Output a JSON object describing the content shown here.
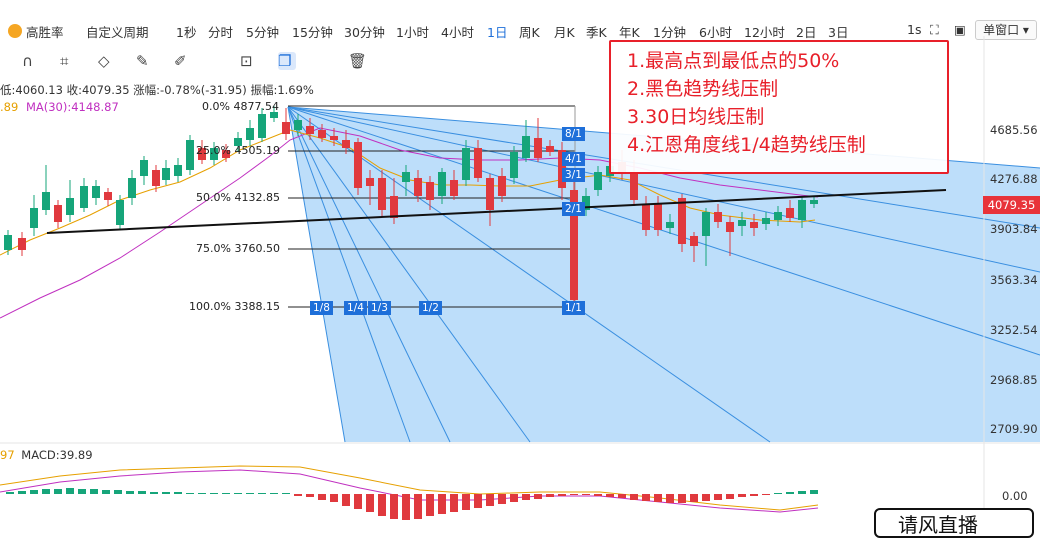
{
  "toolbar": {
    "brand": "高胜率",
    "periods": [
      "自定义周期",
      "1秒",
      "分时",
      "5分钟",
      "15分钟",
      "30分钟",
      "1小时",
      "4小时",
      "1日",
      "周K",
      "月K",
      "季K",
      "年K",
      "1分钟",
      "6小时",
      "12小时",
      "2日",
      "3日"
    ],
    "active_period": "1日",
    "right_period": "1s",
    "window_mode": "单窗口"
  },
  "info_bar": {
    "low": "低:4060.13",
    "close": "收:4079.35",
    "change": "涨幅:-0.78%(-31.95)",
    "amplitude": "振幅:1.69%"
  },
  "ma_bar": {
    "ma_partial": ".89",
    "ma30": "MA(30):4148.87"
  },
  "macd_bar": {
    "partial": "97",
    "macd": "MACD:39.89"
  },
  "price_axis": [
    "4685.56",
    "4276.88",
    "3903.84",
    "3563.34",
    "3252.54",
    "2968.85",
    "2709.90",
    "0.00"
  ],
  "current_price": "4079.35",
  "fib_levels": [
    {
      "label": "0.0%",
      "value": "4877.54"
    },
    {
      "label": "25.0%",
      "value": "4505.19"
    },
    {
      "label": "50.0%",
      "value": "4132.85"
    },
    {
      "label": "75.0%",
      "value": "3760.50"
    },
    {
      "label": "100.0%",
      "value": "3388.15"
    }
  ],
  "gann_labels_right": [
    "8/1",
    "4/1",
    "3/1",
    "2/1",
    "1/1"
  ],
  "gann_labels_bottom": [
    "1/8",
    "1/4",
    "1/3",
    "1/2"
  ],
  "annotation": [
    "1.最高点到最低点的50%",
    "2.黑色趋势线压制",
    "3.30日均线压制",
    "4.江恩角度线1/4趋势线压制"
  ],
  "corner_text": "请风直播",
  "colors": {
    "up": "#16a57a",
    "down": "#e0393e",
    "gann_fill": "#b9dcfa",
    "gann_line": "#3a8fe0",
    "accent": "#1e6fd9"
  }
}
